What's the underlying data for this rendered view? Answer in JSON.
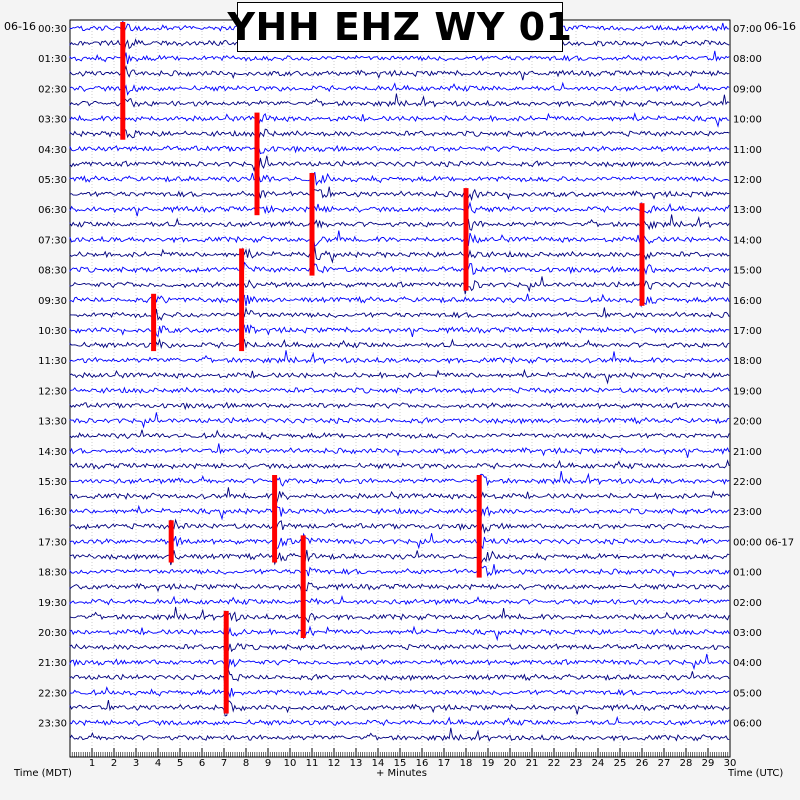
{
  "title": "YHH EHZ WY 01",
  "left_date": "06-16",
  "right_date": "06-16",
  "xlabel_left": "Time (MDT)",
  "xlabel_center": "+ Minutes",
  "xlabel_right": "Time (UTC)",
  "colors": {
    "trace_dark": "#00007f",
    "trace_light": "#0000ff",
    "event": "#ff0000",
    "grid": "#9a9a9a",
    "background": "#ffffff"
  },
  "chart_data": {
    "type": "line",
    "description_units": "helicorder: 48 half-hour traces, x in minutes",
    "xlim": [
      0,
      30
    ],
    "x_ticks": [
      "1",
      "2",
      "3",
      "4",
      "5",
      "6",
      "7",
      "8",
      "9",
      "10",
      "11",
      "12",
      "13",
      "14",
      "15",
      "16",
      "17",
      "18",
      "19",
      "20",
      "21",
      "22",
      "23",
      "24",
      "25",
      "26",
      "27",
      "28",
      "29",
      "30"
    ],
    "left_ticks": [
      "00:30",
      "01:30",
      "02:30",
      "03:30",
      "04:30",
      "05:30",
      "06:30",
      "07:30",
      "08:30",
      "09:30",
      "10:30",
      "11:30",
      "12:30",
      "13:30",
      "14:30",
      "15:30",
      "16:30",
      "17:30",
      "18:30",
      "19:30",
      "20:30",
      "21:30",
      "22:30",
      "23:30"
    ],
    "right_ticks": [
      "07:00",
      "08:00",
      "09:00",
      "10:00",
      "11:00",
      "12:00",
      "13:00",
      "14:00",
      "15:00",
      "16:00",
      "17:00",
      "18:00",
      "19:00",
      "20:00",
      "21:00",
      "22:00",
      "23:00",
      "00:00 06-17",
      "01:00",
      "02:00",
      "03:00",
      "04:00",
      "05:00",
      "06:00"
    ],
    "traces_count": 48,
    "events": [
      {
        "minute": 2.4,
        "start_trace": 0,
        "span": 8
      },
      {
        "minute": 8.5,
        "start_trace": 6,
        "span": 7
      },
      {
        "minute": 11.0,
        "start_trace": 10,
        "span": 7
      },
      {
        "minute": 18.0,
        "start_trace": 11,
        "span": 7
      },
      {
        "minute": 26.0,
        "start_trace": 12,
        "span": 7
      },
      {
        "minute": 7.8,
        "start_trace": 15,
        "span": 7
      },
      {
        "minute": 3.8,
        "start_trace": 18,
        "span": 4
      },
      {
        "minute": 9.3,
        "start_trace": 30,
        "span": 6
      },
      {
        "minute": 18.6,
        "start_trace": 30,
        "span": 7
      },
      {
        "minute": 7.1,
        "start_trace": 39,
        "span": 7
      },
      {
        "minute": 10.6,
        "start_trace": 34,
        "span": 7
      },
      {
        "minute": 4.6,
        "start_trace": 33,
        "span": 3
      }
    ]
  }
}
